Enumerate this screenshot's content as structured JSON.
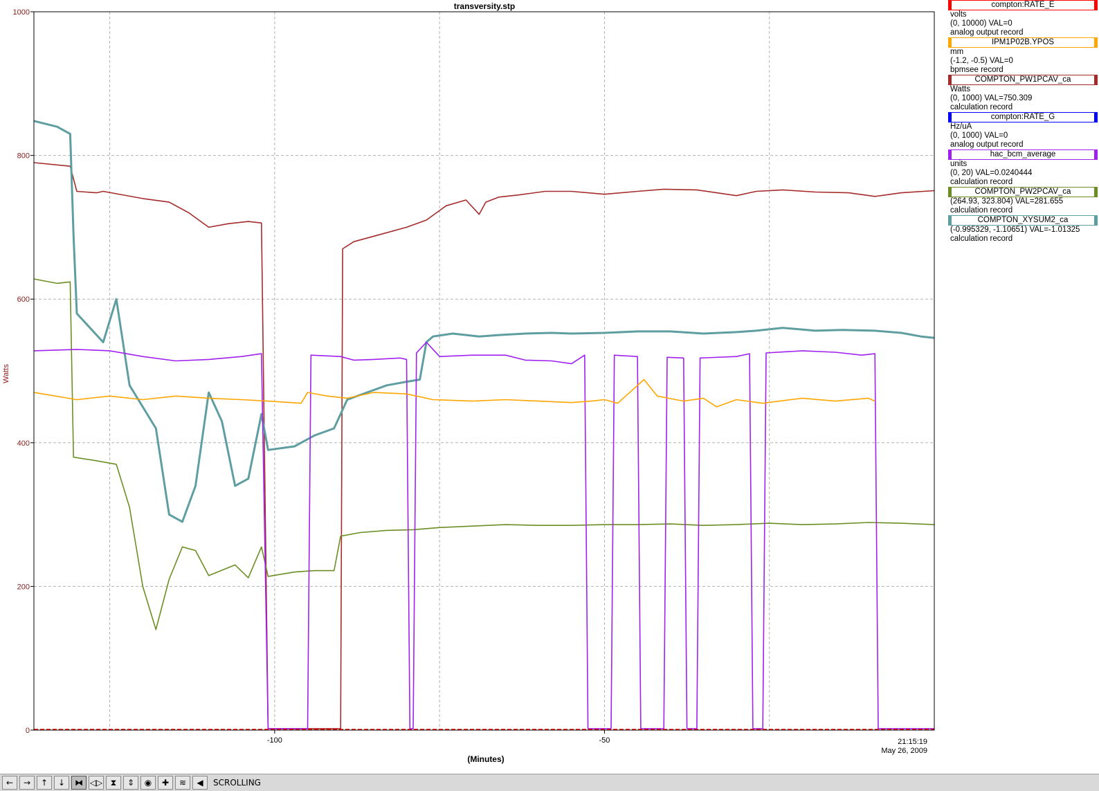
{
  "chart_data": {
    "type": "line",
    "title": "transversity.stp",
    "xlabel": "(Minutes)",
    "ylabel": "Watts",
    "ylim": [
      0,
      1000
    ],
    "xlim": [
      -136.5,
      0
    ],
    "y_ticks": [
      "0",
      "200",
      "400",
      "600",
      "800",
      "1000"
    ],
    "x_ticks": [
      "-100",
      "-50"
    ],
    "timestamp": "21:15:19",
    "date": "May 26, 2009",
    "grid": true,
    "series": [
      {
        "name": "COMPTON_PW1PCAV_ca",
        "color": "#a52a2a",
        "points": [
          [
            -136.5,
            790
          ],
          [
            -131,
            785
          ],
          [
            -130,
            750
          ],
          [
            -127,
            748
          ],
          [
            -126,
            750
          ],
          [
            -120,
            740
          ],
          [
            -116,
            735
          ],
          [
            -113,
            720
          ],
          [
            -110,
            700
          ],
          [
            -107,
            705
          ],
          [
            -104,
            708
          ],
          [
            -102,
            706
          ],
          [
            -101,
            2
          ],
          [
            -90,
            2
          ],
          [
            -89.7,
            670
          ],
          [
            -88,
            680
          ],
          [
            -84,
            690
          ],
          [
            -80,
            700
          ],
          [
            -77,
            710
          ],
          [
            -74,
            730
          ],
          [
            -71,
            738
          ],
          [
            -69,
            718
          ],
          [
            -68,
            735
          ],
          [
            -66,
            742
          ],
          [
            -63,
            745
          ],
          [
            -59,
            750
          ],
          [
            -55,
            750
          ],
          [
            -50,
            746
          ],
          [
            -45,
            750
          ],
          [
            -41,
            753
          ],
          [
            -36,
            752
          ],
          [
            -33,
            748
          ],
          [
            -30,
            744
          ],
          [
            -27,
            750
          ],
          [
            -23,
            752
          ],
          [
            -18,
            749
          ],
          [
            -13,
            748
          ],
          [
            -9,
            743
          ],
          [
            -5,
            748
          ],
          [
            0,
            751
          ]
        ]
      },
      {
        "name": "COMPTON_XYSUM2_ca",
        "color": "#5f9ea0",
        "points": [
          [
            -136.5,
            848
          ],
          [
            -133,
            840
          ],
          [
            -131,
            830
          ],
          [
            -130.5,
            690
          ],
          [
            -130,
            580
          ],
          [
            -128,
            560
          ],
          [
            -126,
            540
          ],
          [
            -124,
            600
          ],
          [
            -122,
            480
          ],
          [
            -118,
            420
          ],
          [
            -116,
            300
          ],
          [
            -114,
            290
          ],
          [
            -112,
            340
          ],
          [
            -110,
            470
          ],
          [
            -108,
            430
          ],
          [
            -106,
            340
          ],
          [
            -104,
            350
          ],
          [
            -102,
            440
          ],
          [
            -101,
            390
          ],
          [
            -97,
            395
          ],
          [
            -94,
            410
          ],
          [
            -91,
            420
          ],
          [
            -89,
            460
          ],
          [
            -86,
            470
          ],
          [
            -83,
            480
          ],
          [
            -80,
            485
          ],
          [
            -78,
            488
          ],
          [
            -77,
            540
          ],
          [
            -76,
            548
          ],
          [
            -73,
            552
          ],
          [
            -69,
            548
          ],
          [
            -66,
            550
          ],
          [
            -62,
            552
          ],
          [
            -58,
            553
          ],
          [
            -55,
            552
          ],
          [
            -50,
            553
          ],
          [
            -45,
            555
          ],
          [
            -40,
            555
          ],
          [
            -35,
            552
          ],
          [
            -30,
            554
          ],
          [
            -27,
            556
          ],
          [
            -23,
            560
          ],
          [
            -18,
            556
          ],
          [
            -14,
            557
          ],
          [
            -9,
            556
          ],
          [
            -5,
            553
          ],
          [
            -2,
            548
          ],
          [
            0,
            546
          ]
        ]
      },
      {
        "name": "COMPTON_PW2PCAV_ca",
        "color": "#6b8e23",
        "points": [
          [
            -136.5,
            628
          ],
          [
            -133,
            622
          ],
          [
            -131,
            624
          ],
          [
            -130.5,
            380
          ],
          [
            -127,
            375
          ],
          [
            -124,
            370
          ],
          [
            -122,
            310
          ],
          [
            -120,
            200
          ],
          [
            -118,
            140
          ],
          [
            -116,
            210
          ],
          [
            -114,
            255
          ],
          [
            -112,
            250
          ],
          [
            -110,
            215
          ],
          [
            -106,
            230
          ],
          [
            -104,
            212
          ],
          [
            -102,
            255
          ],
          [
            -101,
            214
          ],
          [
            -97,
            220
          ],
          [
            -94,
            222
          ],
          [
            -91,
            222
          ],
          [
            -90,
            270
          ],
          [
            -87,
            275
          ],
          [
            -83,
            278
          ],
          [
            -79,
            279
          ],
          [
            -75,
            282
          ],
          [
            -70,
            284
          ],
          [
            -65,
            286
          ],
          [
            -60,
            285
          ],
          [
            -55,
            285
          ],
          [
            -50,
            286
          ],
          [
            -45,
            286
          ],
          [
            -40,
            287
          ],
          [
            -35,
            285
          ],
          [
            -30,
            286
          ],
          [
            -25,
            288
          ],
          [
            -20,
            286
          ],
          [
            -15,
            287
          ],
          [
            -10,
            289
          ],
          [
            -5,
            288
          ],
          [
            0,
            286
          ]
        ]
      },
      {
        "name": "hac_bcm_average",
        "color": "#a020f0",
        "points": [
          [
            -136.5,
            528
          ],
          [
            -130,
            530
          ],
          [
            -125,
            528
          ],
          [
            -120,
            520
          ],
          [
            -115,
            514
          ],
          [
            -110,
            516
          ],
          [
            -105,
            520
          ],
          [
            -102,
            524
          ],
          [
            -101,
            2
          ],
          [
            -95,
            2
          ],
          [
            -94.5,
            522
          ],
          [
            -90,
            520
          ],
          [
            -88,
            515
          ],
          [
            -85,
            516
          ],
          [
            -81,
            518
          ],
          [
            -80,
            516
          ],
          [
            -79.5,
            2
          ],
          [
            -79,
            2
          ],
          [
            -78.5,
            525
          ],
          [
            -77,
            540
          ],
          [
            -75,
            520
          ],
          [
            -70,
            522
          ],
          [
            -65,
            522
          ],
          [
            -62,
            515
          ],
          [
            -58,
            514
          ],
          [
            -55,
            510
          ],
          [
            -53,
            522
          ],
          [
            -52.5,
            2
          ],
          [
            -49,
            2
          ],
          [
            -48.5,
            522
          ],
          [
            -45,
            520
          ],
          [
            -44.5,
            2
          ],
          [
            -41,
            2
          ],
          [
            -40.5,
            519
          ],
          [
            -38,
            518
          ],
          [
            -37.5,
            2
          ],
          [
            -36,
            2
          ],
          [
            -35.5,
            518
          ],
          [
            -30,
            520
          ],
          [
            -28,
            524
          ],
          [
            -27.5,
            2
          ],
          [
            -26,
            2
          ],
          [
            -25.5,
            525
          ],
          [
            -20,
            528
          ],
          [
            -15,
            526
          ],
          [
            -11,
            522
          ],
          [
            -9,
            524
          ],
          [
            -8.5,
            2
          ],
          [
            0,
            2
          ]
        ]
      },
      {
        "name": "IPM1P02B.YPOS",
        "color": "#ffa500",
        "points": [
          [
            -136.5,
            470
          ],
          [
            -130,
            460
          ],
          [
            -125,
            465
          ],
          [
            -120,
            460
          ],
          [
            -115,
            465
          ],
          [
            -110,
            462
          ],
          [
            -105,
            460
          ],
          [
            -101,
            458
          ],
          [
            -96,
            455
          ],
          [
            -95,
            470
          ],
          [
            -92,
            465
          ],
          [
            -89,
            462
          ],
          [
            -85,
            470
          ],
          [
            -80,
            468
          ],
          [
            -76,
            460
          ],
          [
            -70,
            458
          ],
          [
            -65,
            460
          ],
          [
            -60,
            458
          ],
          [
            -55,
            456
          ],
          [
            -52,
            458
          ],
          [
            -50,
            460
          ],
          [
            -48,
            455
          ],
          [
            -44,
            488
          ],
          [
            -42,
            465
          ],
          [
            -38,
            458
          ],
          [
            -35,
            462
          ],
          [
            -33,
            450
          ],
          [
            -30,
            460
          ],
          [
            -26,
            455
          ],
          [
            -20,
            462
          ],
          [
            -15,
            458
          ],
          [
            -10,
            462
          ],
          [
            -9,
            458
          ]
        ]
      }
    ]
  },
  "legend": [
    {
      "name": "compton:RATE_E",
      "color": "#ff0000",
      "lines": [
        "volts",
        "(0, 10000)  VAL=0",
        "analog output record"
      ]
    },
    {
      "name": "IPM1P02B.YPOS",
      "color": "#ffa500",
      "lines": [
        "mm",
        "(-1.2, -0.5) VAL=0",
        "bpmsee record"
      ]
    },
    {
      "name": "COMPTON_PW1PCAV_ca",
      "color": "#a52a2a",
      "lines": [
        "Watts",
        "(0, 1000) VAL=750.309",
        "calculation record"
      ]
    },
    {
      "name": "compton:RATE_G",
      "color": "#0000ff",
      "lines": [
        "Hz/uA",
        "(0, 1000)  VAL=0",
        "analog output record"
      ]
    },
    {
      "name": "hac_bcm_average",
      "color": "#a020f0",
      "lines": [
        "units",
        "(0, 20) VAL=0.0240444",
        "calculation record"
      ]
    },
    {
      "name": "COMPTON_PW2PCAV_ca",
      "color": "#6b8e23",
      "lines": [
        "(264.93, 323.804) VAL=281.655",
        "calculation record"
      ]
    },
    {
      "name": "COMPTON_XYSUM2_ca",
      "color": "#5f9ea0",
      "lines": [
        "(-0.995329, -1.10651) VAL=-1.01325",
        "calculation record"
      ]
    }
  ],
  "toolbar": {
    "buttons": [
      {
        "icon": "arrow-left-icon",
        "glyph": "←"
      },
      {
        "icon": "arrow-right-icon",
        "glyph": "→"
      },
      {
        "icon": "arrow-up-icon",
        "glyph": "↑"
      },
      {
        "icon": "arrow-down-icon",
        "glyph": "↓"
      },
      {
        "icon": "zoom-in-horizontal-icon",
        "glyph": "⧓"
      },
      {
        "icon": "zoom-out-horizontal-icon",
        "glyph": "◁▷"
      },
      {
        "icon": "zoom-in-vertical-icon",
        "glyph": "⧗"
      },
      {
        "icon": "zoom-out-vertical-icon",
        "glyph": "⇕"
      },
      {
        "icon": "auto-scale-icon",
        "glyph": "◉"
      },
      {
        "icon": "reset-icon",
        "glyph": "✚"
      },
      {
        "icon": "refresh-plot-icon",
        "glyph": "≋"
      },
      {
        "icon": "scroll-mode-icon",
        "glyph": "◀"
      }
    ],
    "status_label": "SCROLLING"
  }
}
